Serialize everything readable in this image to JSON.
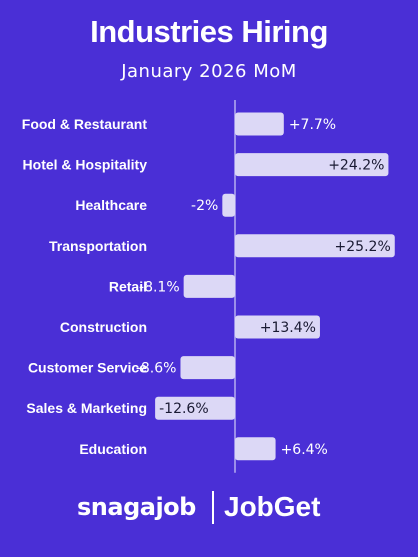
{
  "chart_data": {
    "type": "bar",
    "orientation": "horizontal",
    "title": "Industries Hiring",
    "subtitle": "January 2026 MoM",
    "categories": [
      "Food & Restaurant",
      "Hotel & Hospitality",
      "Healthcare",
      "Transportation",
      "Retail",
      "Construction",
      "Customer Service",
      "Sales & Marketing",
      "Education"
    ],
    "values": [
      7.7,
      24.2,
      -2,
      25.2,
      -8.1,
      13.4,
      -8.6,
      -12.6,
      6.4
    ],
    "data_labels": [
      "+7.7%",
      "+24.2%",
      "-2%",
      "+25.2%",
      "-8.1%",
      "+13.4%",
      "-8.6%",
      "-12.6%",
      "+6.4%"
    ],
    "unit": "%",
    "xlim": [
      -14,
      28
    ],
    "grid": false,
    "colors": {
      "background": "#4a2fd6",
      "bar": "#dcd8f6",
      "axis": "#b6adf0",
      "text": "#ffffff",
      "inside_label": "#1a1a33"
    }
  },
  "footer": {
    "brand_left": "snagajob",
    "brand_right": "JobGet"
  }
}
